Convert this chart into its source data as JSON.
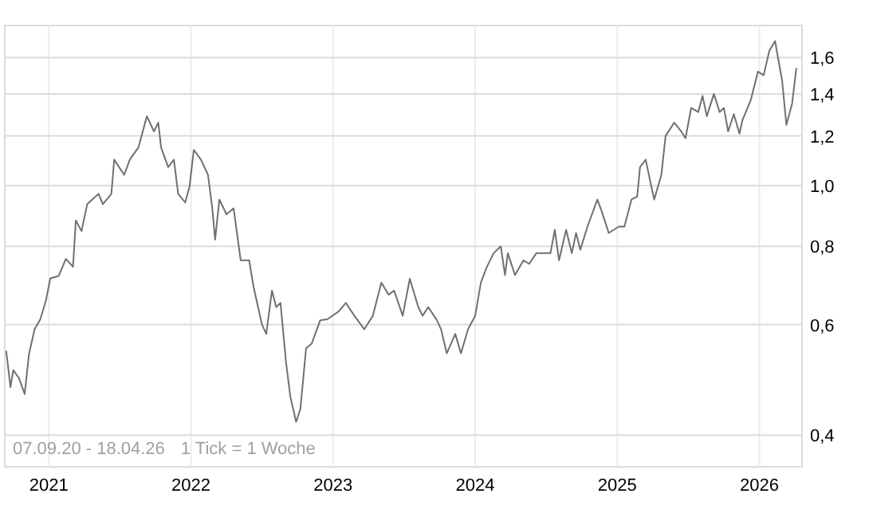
{
  "chart_data": {
    "type": "line",
    "log": "y",
    "grid": true,
    "xlim": [
      2020.69,
      2026.3
    ],
    "xticks": [
      2021,
      2022,
      2023,
      2024,
      2025,
      2026
    ],
    "ylim": [
      0.356,
      1.8
    ],
    "yticks": [
      {
        "value": 0.4,
        "label": "0,4"
      },
      {
        "value": 0.6,
        "label": "0,6"
      },
      {
        "value": 0.8,
        "label": "0,8"
      },
      {
        "value": 1.0,
        "label": "1,0"
      },
      {
        "value": 1.2,
        "label": "1,2"
      },
      {
        "value": 1.4,
        "label": "1,4"
      },
      {
        "value": 1.6,
        "label": "1,6"
      }
    ],
    "annotations": [
      "07.09.20 - 18.04.26",
      "1 Tick = 1 Woche"
    ],
    "series": [
      {
        "color": "#707070",
        "x": [
          2020.7,
          2020.73,
          2020.75,
          2020.79,
          2020.83,
          2020.86,
          2020.9,
          2020.94,
          2020.98,
          2021.01,
          2021.07,
          2021.12,
          2021.17,
          2021.19,
          2021.23,
          2021.27,
          2021.35,
          2021.38,
          2021.44,
          2021.46,
          2021.53,
          2021.57,
          2021.63,
          2021.69,
          2021.74,
          2021.77,
          2021.79,
          2021.84,
          2021.88,
          2021.91,
          2021.96,
          2021.99,
          2022.02,
          2022.07,
          2022.12,
          2022.15,
          2022.17,
          2022.2,
          2022.25,
          2022.3,
          2022.35,
          2022.41,
          2022.44,
          2022.5,
          2022.53,
          2022.57,
          2022.6,
          2022.63,
          2022.67,
          2022.7,
          2022.74,
          2022.77,
          2022.81,
          2022.85,
          2022.91,
          2022.96,
          2023.04,
          2023.09,
          2023.15,
          2023.22,
          2023.28,
          2023.34,
          2023.39,
          2023.43,
          2023.49,
          2023.54,
          2023.6,
          2023.63,
          2023.67,
          2023.73,
          2023.76,
          2023.8,
          2023.86,
          2023.9,
          2023.95,
          2024.0,
          2024.04,
          2024.08,
          2024.13,
          2024.18,
          2024.21,
          2024.23,
          2024.28,
          2024.34,
          2024.38,
          2024.43,
          2024.53,
          2024.56,
          2024.59,
          2024.64,
          2024.68,
          2024.71,
          2024.74,
          2024.79,
          2024.86,
          2024.89,
          2024.94,
          2025.01,
          2025.05,
          2025.1,
          2025.14,
          2025.16,
          2025.2,
          2025.23,
          2025.26,
          2025.31,
          2025.34,
          2025.4,
          2025.45,
          2025.48,
          2025.52,
          2025.57,
          2025.6,
          2025.63,
          2025.68,
          2025.72,
          2025.75,
          2025.78,
          2025.82,
          2025.86,
          2025.88,
          2025.94,
          2025.99,
          2026.03,
          2026.07,
          2026.11,
          2026.16,
          2026.19,
          2026.23,
          2026.26
        ],
        "values": [
          0.545,
          0.477,
          0.508,
          0.493,
          0.465,
          0.538,
          0.59,
          0.612,
          0.656,
          0.711,
          0.718,
          0.764,
          0.742,
          0.88,
          0.846,
          0.934,
          0.97,
          0.934,
          0.97,
          1.1,
          1.04,
          1.1,
          1.15,
          1.29,
          1.22,
          1.26,
          1.15,
          1.07,
          1.1,
          0.97,
          0.94,
          0.996,
          1.14,
          1.1,
          1.04,
          0.92,
          0.82,
          0.95,
          0.9,
          0.92,
          0.76,
          0.76,
          0.69,
          0.6,
          0.58,
          0.68,
          0.64,
          0.65,
          0.52,
          0.46,
          0.42,
          0.44,
          0.55,
          0.56,
          0.61,
          0.612,
          0.63,
          0.65,
          0.62,
          0.59,
          0.62,
          0.7,
          0.67,
          0.68,
          0.62,
          0.71,
          0.64,
          0.62,
          0.64,
          0.61,
          0.59,
          0.54,
          0.58,
          0.54,
          0.59,
          0.62,
          0.7,
          0.74,
          0.78,
          0.8,
          0.72,
          0.78,
          0.72,
          0.76,
          0.75,
          0.78,
          0.78,
          0.85,
          0.76,
          0.85,
          0.78,
          0.84,
          0.79,
          0.86,
          0.95,
          0.91,
          0.84,
          0.86,
          0.86,
          0.95,
          0.96,
          1.07,
          1.1,
          1.02,
          0.95,
          1.04,
          1.2,
          1.26,
          1.22,
          1.19,
          1.33,
          1.31,
          1.39,
          1.29,
          1.4,
          1.31,
          1.33,
          1.22,
          1.3,
          1.21,
          1.27,
          1.37,
          1.52,
          1.5,
          1.64,
          1.7,
          1.47,
          1.25,
          1.35,
          1.54
        ]
      }
    ]
  }
}
